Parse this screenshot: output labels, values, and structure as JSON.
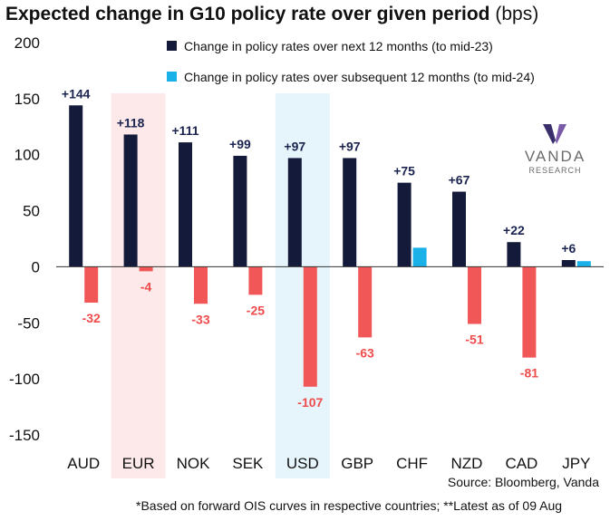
{
  "title": {
    "main": "Expected change in G10 policy rate over given period",
    "unit": "(bps)"
  },
  "source": "Source: Bloomberg, Vanda",
  "footnote": "*Based on forward OIS curves in respective countries; **Latest as of 09 Aug",
  "logo": {
    "name": "VANDA",
    "sub": "RESEARCH"
  },
  "colors": {
    "series1": "#141a3a",
    "series2": "#1ab0e8",
    "negative": "#f25757",
    "negative_label": "#ef4b4b",
    "positive_label": "#1b2450",
    "highlight_eur": "#fde9e9",
    "highlight_usd": "#e6f4fb"
  },
  "chart_data": {
    "type": "bar",
    "title": "Expected change in G10 policy rate over given period (bps)",
    "categories": [
      "AUD",
      "EUR",
      "NOK",
      "SEK",
      "USD",
      "GBP",
      "CHF",
      "NZD",
      "CAD",
      "JPY"
    ],
    "series": [
      {
        "name": "Change in policy rates over next 12 months (to mid-23)",
        "values": [
          144,
          118,
          111,
          99,
          97,
          97,
          75,
          67,
          22,
          6
        ],
        "labels": [
          "+144",
          "+118",
          "+111",
          "+99",
          "+97",
          "+97",
          "+75",
          "+67",
          "+22",
          "+6"
        ]
      },
      {
        "name": "Change in policy rates over subsequent 12 months (to mid-24)",
        "values": [
          -32,
          -4,
          -33,
          -25,
          -107,
          -63,
          17,
          -51,
          -81,
          5
        ],
        "labels": [
          "-32",
          "-4",
          "-33",
          "-25",
          "-107",
          "-63",
          "",
          "-51",
          "-81",
          ""
        ]
      }
    ],
    "ylim": [
      -150,
      200
    ],
    "yticks": [
      200,
      150,
      100,
      50,
      0,
      -50,
      -100,
      -150
    ],
    "highlighted_categories": [
      "EUR",
      "USD"
    ],
    "legend_position": "top-right",
    "grid": false
  }
}
